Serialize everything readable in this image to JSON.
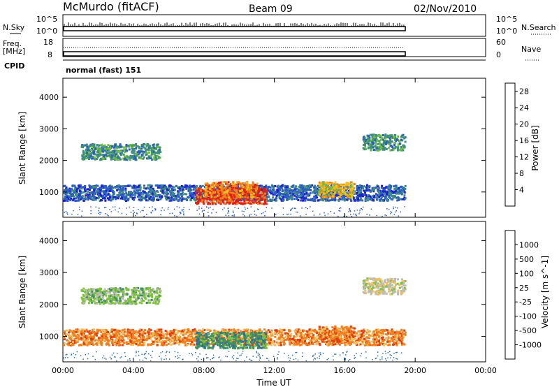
{
  "header": {
    "station": "McMurdo (fitACF)",
    "beam": "Beam 09",
    "date": "02/Nov/2010"
  },
  "top_panels": {
    "nsky_label": "N.Sky",
    "nsky_ticks": [
      "10^5",
      "10^0"
    ],
    "nsearch_label": "N.Search",
    "nsearch_ticks": [
      "10^5",
      "10^0"
    ],
    "freq_label": "Freq.",
    "freq_unit": "[MHz]",
    "freq_ticks": [
      "18",
      "8"
    ],
    "nave_label": "Nave",
    "nave_ticks": [
      "60",
      "0"
    ],
    "cpid_label": "CPID",
    "cpid_value": "normal (fast) 151"
  },
  "chart_data": [
    {
      "type": "heatmap",
      "name": "power",
      "ylabel": "Slant Range [km]",
      "yticks": [
        "1000",
        "2000",
        "3000",
        "4000"
      ],
      "ylim": [
        200,
        4600
      ],
      "xlim": [
        0,
        24
      ],
      "colorbar_label": "Power [dB]",
      "colorbar_ticks": [
        "4",
        "8",
        "12",
        "16",
        "20",
        "24",
        "28"
      ],
      "colors": [
        "#1f1fd0",
        "#2b5fc0",
        "#3f8f7a",
        "#6fbf3f",
        "#f0c020",
        "#f08020",
        "#e02010"
      ],
      "data_end_hour": 19.4,
      "bands": [
        {
          "t0": 0.0,
          "t1": 19.4,
          "r": 1000,
          "level": 1
        },
        {
          "t0": 1.0,
          "t1": 5.5,
          "r": 2300,
          "level": 2
        },
        {
          "t0": 7.5,
          "t1": 11.5,
          "r": 900,
          "level": 6
        },
        {
          "t0": 8.0,
          "t1": 11.0,
          "r": 1100,
          "level": 5
        },
        {
          "t0": 14.5,
          "t1": 16.5,
          "r": 1100,
          "level": 4
        },
        {
          "t0": 17.0,
          "t1": 19.4,
          "r": 2600,
          "level": 2
        }
      ]
    },
    {
      "type": "heatmap",
      "name": "velocity",
      "ylabel": "Slant Range [km]",
      "yticks": [
        "1000",
        "2000",
        "3000",
        "4000"
      ],
      "ylim": [
        200,
        4600
      ],
      "xlim": [
        0,
        24
      ],
      "colorbar_label": "Velocity [m s^-1]",
      "colorbar_ticks": [
        "1000",
        "500",
        "100",
        "25",
        "-25",
        "-100",
        "-500",
        "-1000"
      ],
      "colors": [
        "#2040c0",
        "#2f6f9f",
        "#3f8f5f",
        "#7fc03f",
        "#bcbcb4",
        "#f0c060",
        "#f08020",
        "#e04010",
        "#e01010"
      ],
      "data_end_hour": 19.4,
      "bands": [
        {
          "t0": 0.0,
          "t1": 19.4,
          "r": 1000,
          "level": 6
        },
        {
          "t0": 1.0,
          "t1": 5.5,
          "r": 2300,
          "level": 3
        },
        {
          "t0": 7.5,
          "t1": 11.5,
          "r": 900,
          "level": 2
        },
        {
          "t0": 14.5,
          "t1": 16.5,
          "r": 1100,
          "level": 6
        },
        {
          "t0": 17.0,
          "t1": 19.4,
          "r": 2600,
          "level": 4
        }
      ]
    }
  ],
  "x_axis": {
    "label": "Time UT",
    "ticks": [
      "00:00",
      "04:00",
      "08:00",
      "12:00",
      "16:00",
      "20:00",
      "00:00"
    ]
  }
}
